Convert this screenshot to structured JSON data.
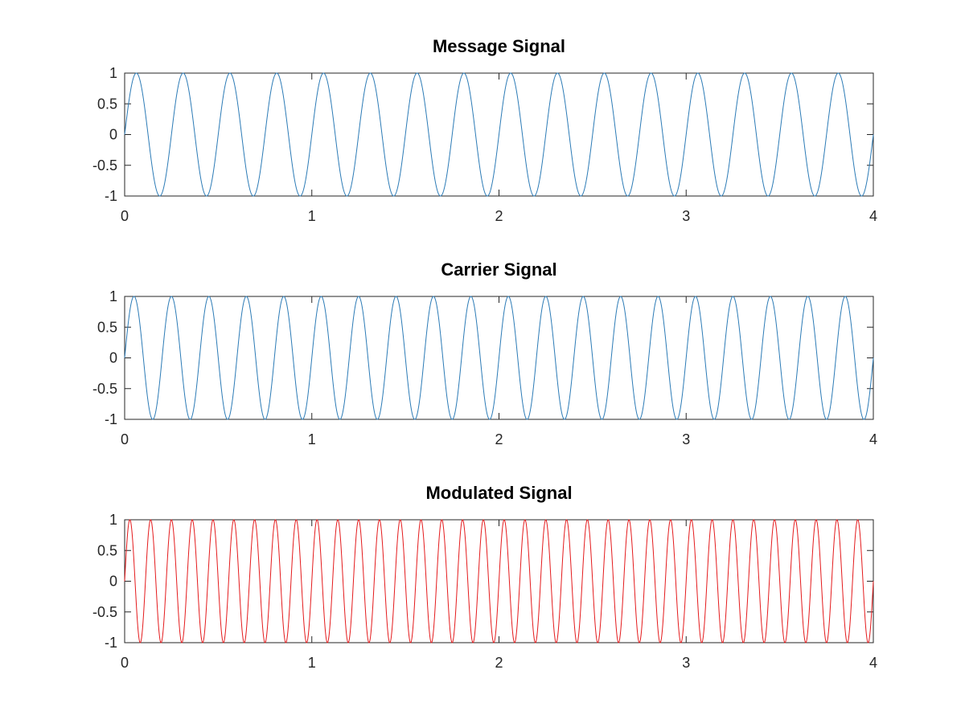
{
  "chart_data": [
    {
      "type": "line",
      "title": "Message Signal",
      "xlim": [
        0,
        4
      ],
      "ylim": [
        -1,
        1
      ],
      "xticks": [
        "0",
        "1",
        "2",
        "3",
        "4"
      ],
      "yticks": [
        "1",
        "0.5",
        "0",
        "-0.5",
        "-1"
      ],
      "grid": false,
      "series": [
        {
          "function": "sin(2*pi*f*x)",
          "frequency": 4,
          "color": "#2c7bb6"
        }
      ]
    },
    {
      "type": "line",
      "title": "Carrier Signal",
      "xlim": [
        0,
        4
      ],
      "ylim": [
        -1,
        1
      ],
      "xticks": [
        "0",
        "1",
        "2",
        "3",
        "4"
      ],
      "yticks": [
        "1",
        "0.5",
        "0",
        "-0.5",
        "-1"
      ],
      "grid": false,
      "series": [
        {
          "function": "sin(2*pi*f*x)",
          "frequency": 5,
          "color": "#2c7bb6"
        }
      ]
    },
    {
      "type": "line",
      "title": "Modulated Signal",
      "xlim": [
        0,
        4
      ],
      "ylim": [
        -1,
        1
      ],
      "xticks": [
        "0",
        "1",
        "2",
        "3",
        "4"
      ],
      "yticks": [
        "1",
        "0.5",
        "0",
        "-0.5",
        "-1"
      ],
      "grid": false,
      "series": [
        {
          "function": "sin(2*pi*f*x)",
          "frequency": 9,
          "color": "#e41a1c"
        }
      ]
    }
  ]
}
